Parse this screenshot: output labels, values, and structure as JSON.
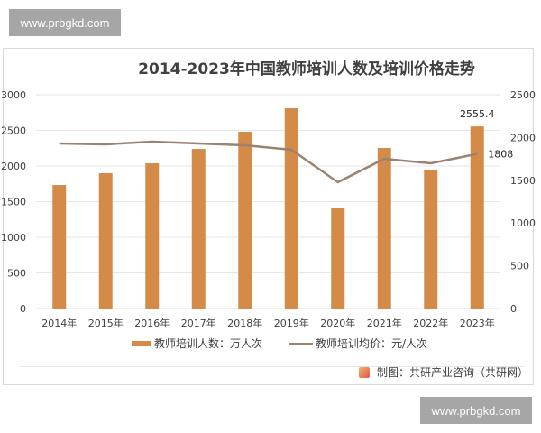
{
  "watermark": {
    "top": "www.prbgkd.com",
    "bottom": "www.prbgkd.com"
  },
  "title": "2014-2023年中国教师培训人数及培训价格走势",
  "legend": {
    "bar_label": "教师培训人数：万人次",
    "line_label": "教师培训均价：元/人次"
  },
  "source": "制图：共研产业咨询（共研网）",
  "colors": {
    "bar": "#d48b48",
    "line": "#9c8270",
    "grid": "#e6e6e6",
    "text": "#404040"
  },
  "axes": {
    "left_ticks": [
      "0",
      "500",
      "1000",
      "1500",
      "2000",
      "2500",
      "3000"
    ],
    "right_ticks": [
      "0",
      "500",
      "1000",
      "1500",
      "2000",
      "2500"
    ]
  },
  "annotations": {
    "bar_last": "2555.4",
    "line_last": "1808"
  },
  "chart_data": {
    "type": "bar",
    "title": "2014-2023年中国教师培训人数及培训价格走势",
    "categories": [
      "2014年",
      "2015年",
      "2016年",
      "2017年",
      "2018年",
      "2019年",
      "2020年",
      "2021年",
      "2022年",
      "2023年"
    ],
    "series": [
      {
        "name": "教师培训人数：万人次",
        "type": "bar",
        "axis": "left",
        "values": [
          1734,
          1899,
          2038,
          2240,
          2481,
          2810,
          1405,
          2253,
          1937,
          2555.4
        ]
      },
      {
        "name": "教师培训均价：元/人次",
        "type": "line",
        "axis": "right",
        "values": [
          1930,
          1920,
          1951,
          1930,
          1909,
          1857,
          1477,
          1751,
          1698,
          1808
        ]
      }
    ],
    "xlabel": "",
    "ylabel": "",
    "ylim": [
      0,
      3000
    ],
    "y2lim": [
      0,
      2500
    ],
    "grid": true,
    "legend_position": "bottom",
    "data_labels": {
      "2023年_bar": "2555.4",
      "2023年_line": "1808"
    },
    "source": "制图：共研产业咨询（共研网）"
  }
}
